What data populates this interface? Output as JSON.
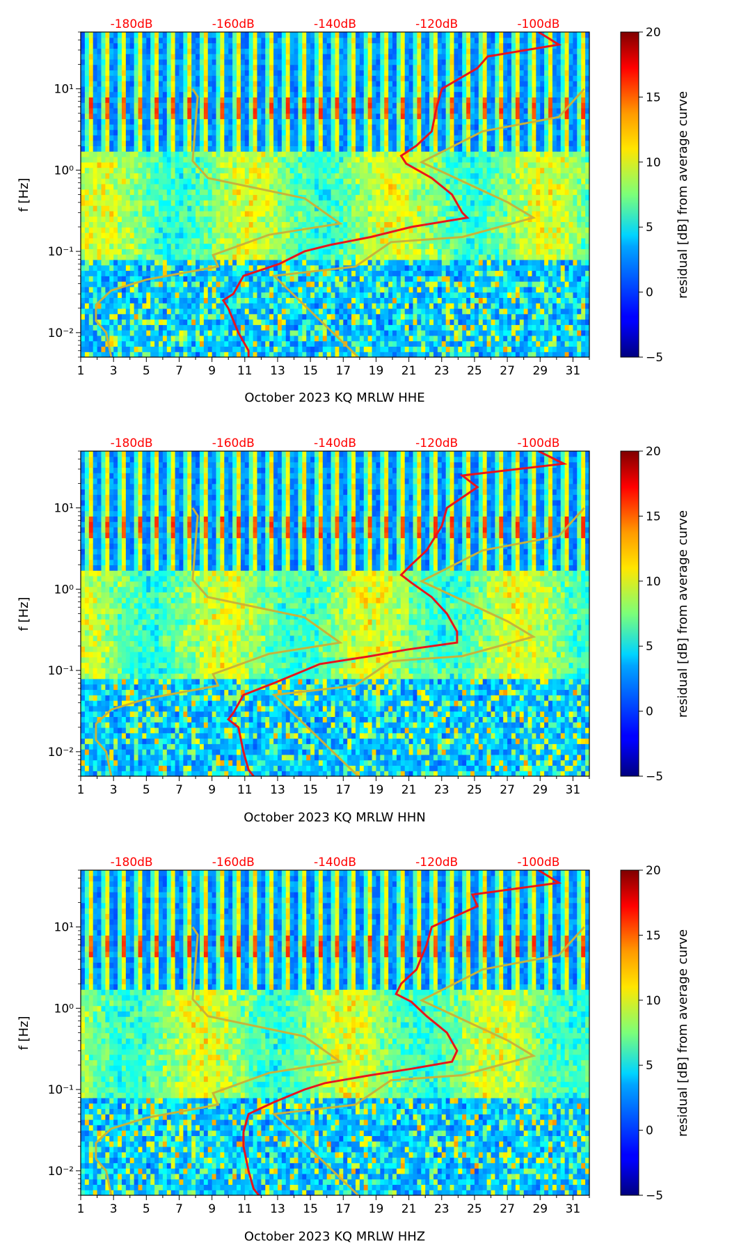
{
  "chart_data": [
    {
      "type": "heatmap",
      "xlabel": "October 2023 KQ MRLW  HHE",
      "ylabel": "f [Hz]",
      "x_ticks": [
        "1",
        "3",
        "5",
        "7",
        "9",
        "11",
        "13",
        "15",
        "17",
        "19",
        "21",
        "23",
        "25",
        "27",
        "29",
        "31"
      ],
      "y_ticks": [
        "10⁻²",
        "10⁻¹",
        "10⁰",
        "10¹"
      ],
      "xlim": [
        1,
        32
      ],
      "ylim": [
        0.005,
        50
      ],
      "y_scale": "log",
      "top_ticks": [
        "-180dB",
        "-160dB",
        "-140dB",
        "-120dB",
        "-100dB"
      ],
      "top_range_db": [
        -190,
        -90
      ],
      "colorbar": {
        "label": "residual [dB] from average curve",
        "ticks": [
          "20",
          "15",
          "10",
          "5",
          "0",
          "−5"
        ],
        "range": [
          -5,
          20
        ],
        "colormap": "jet"
      },
      "colors": {
        "red_curve": "#e8141c",
        "noise_model": "#c8b33a",
        "top_tick_labels": "#ff0000"
      },
      "red_curve_db_vs_freq": [
        [
          50,
          -100
        ],
        [
          35,
          -96
        ],
        [
          25,
          -110
        ],
        [
          18,
          -112
        ],
        [
          10,
          -119
        ],
        [
          6,
          -120
        ],
        [
          3,
          -121
        ],
        [
          2,
          -124
        ],
        [
          1.5,
          -127
        ],
        [
          1.2,
          -126
        ],
        [
          0.8,
          -121
        ],
        [
          0.5,
          -117
        ],
        [
          0.3,
          -115
        ],
        [
          0.26,
          -114
        ],
        [
          0.2,
          -125
        ],
        [
          0.15,
          -133
        ],
        [
          0.12,
          -141
        ],
        [
          0.1,
          -146
        ],
        [
          0.07,
          -151
        ],
        [
          0.05,
          -158
        ],
        [
          0.03,
          -160
        ],
        [
          0.025,
          -162
        ],
        [
          0.02,
          -161
        ],
        [
          0.01,
          -159
        ],
        [
          0.006,
          -157
        ],
        [
          0.005,
          -157
        ]
      ]
    },
    {
      "type": "heatmap",
      "xlabel": "October 2023 KQ MRLW  HHN",
      "ylabel": "f [Hz]",
      "x_ticks": [
        "1",
        "3",
        "5",
        "7",
        "9",
        "11",
        "13",
        "15",
        "17",
        "19",
        "21",
        "23",
        "25",
        "27",
        "29",
        "31"
      ],
      "y_ticks": [
        "10⁻²",
        "10⁻¹",
        "10⁰",
        "10¹"
      ],
      "xlim": [
        1,
        32
      ],
      "ylim": [
        0.005,
        50
      ],
      "y_scale": "log",
      "top_ticks": [
        "-180dB",
        "-160dB",
        "-140dB",
        "-120dB",
        "-100dB"
      ],
      "top_range_db": [
        -190,
        -90
      ],
      "colorbar": {
        "label": "residual [dB] from average curve",
        "ticks": [
          "20",
          "15",
          "10",
          "5",
          "0",
          "−5"
        ],
        "range": [
          -5,
          20
        ],
        "colormap": "jet"
      },
      "colors": {
        "red_curve": "#e8141c",
        "noise_model": "#c8b33a",
        "top_tick_labels": "#ff0000"
      },
      "red_curve_db_vs_freq": [
        [
          50,
          -100
        ],
        [
          35,
          -95
        ],
        [
          25,
          -115
        ],
        [
          18,
          -112
        ],
        [
          10,
          -118
        ],
        [
          6,
          -119
        ],
        [
          3,
          -122
        ],
        [
          2,
          -125
        ],
        [
          1.5,
          -127
        ],
        [
          1.2,
          -125
        ],
        [
          0.8,
          -121
        ],
        [
          0.5,
          -118
        ],
        [
          0.3,
          -116
        ],
        [
          0.22,
          -116
        ],
        [
          0.18,
          -126
        ],
        [
          0.15,
          -133
        ],
        [
          0.12,
          -143
        ],
        [
          0.1,
          -146
        ],
        [
          0.07,
          -152
        ],
        [
          0.05,
          -158
        ],
        [
          0.03,
          -160
        ],
        [
          0.025,
          -161
        ],
        [
          0.02,
          -159
        ],
        [
          0.01,
          -158
        ],
        [
          0.006,
          -157
        ],
        [
          0.005,
          -156
        ]
      ]
    },
    {
      "type": "heatmap",
      "xlabel": "October 2023 KQ MRLW  HHZ",
      "ylabel": "f [Hz]",
      "x_ticks": [
        "1",
        "3",
        "5",
        "7",
        "9",
        "11",
        "13",
        "15",
        "17",
        "19",
        "21",
        "23",
        "25",
        "27",
        "29",
        "31"
      ],
      "y_ticks": [
        "10⁻²",
        "10⁻¹",
        "10⁰",
        "10¹"
      ],
      "xlim": [
        1,
        32
      ],
      "ylim": [
        0.005,
        50
      ],
      "y_scale": "log",
      "top_ticks": [
        "-180dB",
        "-160dB",
        "-140dB",
        "-120dB",
        "-100dB"
      ],
      "top_range_db": [
        -190,
        -90
      ],
      "colorbar": {
        "label": "residual [dB] from average curve",
        "ticks": [
          "20",
          "15",
          "10",
          "5",
          "0",
          "−5"
        ],
        "range": [
          -5,
          20
        ],
        "colormap": "jet"
      },
      "colors": {
        "red_curve": "#e8141c",
        "noise_model": "#c8b33a",
        "top_tick_labels": "#ff0000"
      },
      "red_curve_db_vs_freq": [
        [
          50,
          -100
        ],
        [
          35,
          -96
        ],
        [
          25,
          -113
        ],
        [
          18,
          -112
        ],
        [
          10,
          -121
        ],
        [
          6,
          -122
        ],
        [
          3,
          -124
        ],
        [
          2,
          -127
        ],
        [
          1.5,
          -128
        ],
        [
          1.2,
          -125
        ],
        [
          0.8,
          -122
        ],
        [
          0.5,
          -118
        ],
        [
          0.3,
          -116
        ],
        [
          0.22,
          -117
        ],
        [
          0.18,
          -125
        ],
        [
          0.15,
          -133
        ],
        [
          0.12,
          -142
        ],
        [
          0.1,
          -146
        ],
        [
          0.07,
          -152
        ],
        [
          0.05,
          -157
        ],
        [
          0.03,
          -158
        ],
        [
          0.025,
          -158
        ],
        [
          0.02,
          -158
        ],
        [
          0.01,
          -157
        ],
        [
          0.006,
          -156
        ],
        [
          0.005,
          -155
        ]
      ]
    }
  ],
  "noise_model_db_vs_freq": {
    "nlnm": [
      [
        10,
        -168
      ],
      [
        8,
        -167
      ],
      [
        1.3,
        -168
      ],
      [
        0.8,
        -165
      ],
      [
        0.45,
        -146
      ],
      [
        0.22,
        -139
      ],
      [
        0.16,
        -153
      ],
      [
        0.09,
        -164
      ],
      [
        0.065,
        -163
      ],
      [
        0.045,
        -177
      ],
      [
        0.033,
        -184
      ],
      [
        0.022,
        -187
      ],
      [
        0.014,
        -187
      ],
      [
        0.01,
        -185
      ],
      [
        0.005,
        -184
      ]
    ],
    "nhnm": [
      [
        10,
        -91
      ],
      [
        4.5,
        -96
      ],
      [
        3,
        -111
      ],
      [
        1.25,
        -123
      ],
      [
        0.4,
        -106
      ],
      [
        0.26,
        -101
      ],
      [
        0.15,
        -115
      ],
      [
        0.13,
        -129
      ],
      [
        0.065,
        -136
      ],
      [
        0.05,
        -152
      ],
      [
        0.0047,
        -135
      ]
    ]
  }
}
